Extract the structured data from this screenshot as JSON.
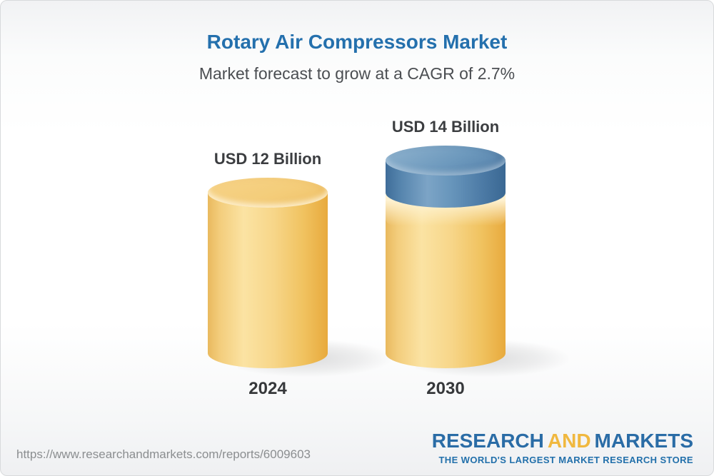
{
  "header": {
    "title": "Rotary Air Compressors Market",
    "subtitle": "Market forecast to grow at a CAGR of 2.7%"
  },
  "chart_data": {
    "type": "bar",
    "subtype": "3d-cylinder",
    "title": "Rotary Air Compressors Market",
    "categories": [
      "2024",
      "2030"
    ],
    "values": [
      12,
      14
    ],
    "unit": "USD Billion",
    "value_labels": [
      "USD 12 Billion",
      "USD 14 Billion"
    ],
    "cagr_percent": 2.7,
    "ylim": [
      0,
      14
    ],
    "colors": {
      "base_segment": "#f3cd7c",
      "growth_segment": "#5584ad"
    }
  },
  "footer": {
    "url": "https://www.researchandmarkets.com/reports/6009603",
    "logo": {
      "part1": "RESEARCH",
      "part2": "AND",
      "part3": "MARKETS",
      "tagline": "THE WORLD'S LARGEST MARKET RESEARCH STORE",
      "brand_blue": "#2a6ca6",
      "brand_gold": "#f0b83f"
    }
  },
  "style": {
    "title_color": "#2470ad",
    "subtitle_color": "#4b4e52",
    "label_color": "#3b3d40"
  }
}
